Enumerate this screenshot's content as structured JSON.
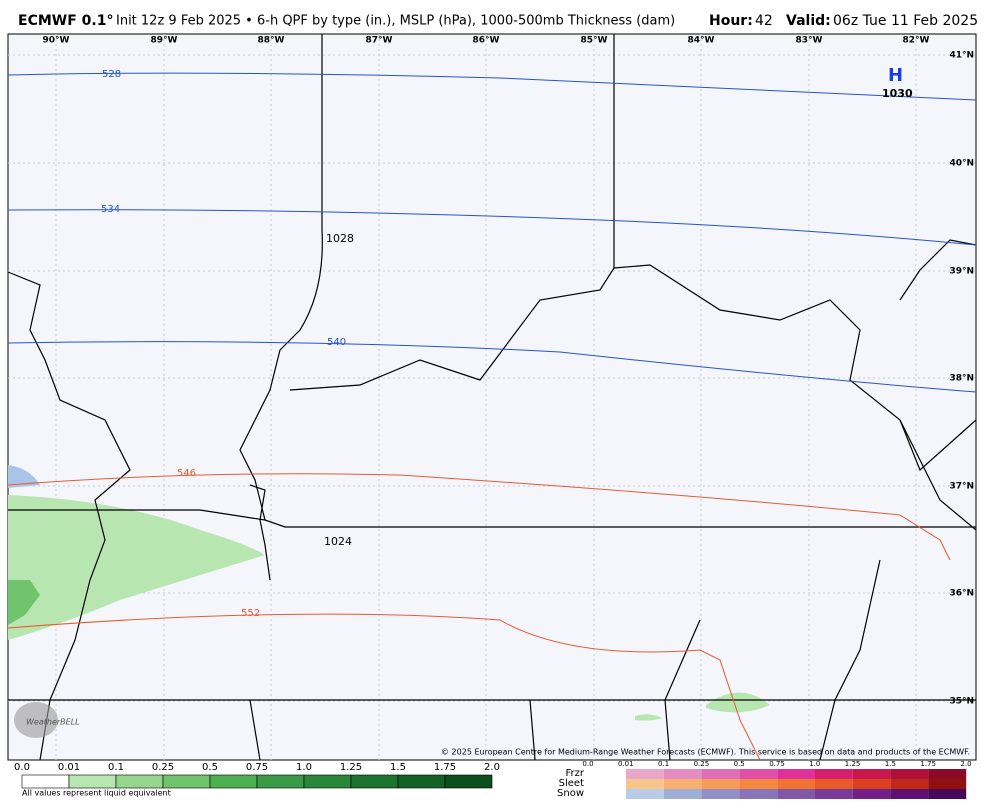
{
  "header": {
    "model": "ECMWF 0.1°",
    "subtitle": "Init 12z 9 Feb 2025 • 6-h QPF by type (in.), MSLP (hPa), 1000-500mb Thickness (dam)",
    "hour_label": "Hour:",
    "hour": "42",
    "valid_label": "Valid:",
    "valid": "06z Tue 11 Feb 2025"
  },
  "map": {
    "longitudes": [
      "90°W",
      "89°W",
      "88°W",
      "87°W",
      "86°W",
      "85°W",
      "84°W",
      "83°W",
      "82°W"
    ],
    "latitudes": [
      "41°N",
      "40°N",
      "39°N",
      "38°N",
      "37°N",
      "36°N",
      "35°N"
    ],
    "thickness_labels": [
      "528",
      "534",
      "540",
      "546",
      "552"
    ],
    "pressure_labels": [
      "1028",
      "1024",
      "1030"
    ],
    "high_marker": "H",
    "copyright": "© 2025 European Centre for Medium-Range Weather Forecasts (ECMWF). This service is based on data and products of the ECMWF.",
    "logo": "WeatherBELL"
  },
  "legend": {
    "rain_ticks": [
      "0.0",
      "0.01",
      "0.1",
      "0.25",
      "0.5",
      "0.75",
      "1.0",
      "1.25",
      "1.5",
      "1.75",
      "2.0"
    ],
    "note": "All values represent liquid equivalent",
    "types": [
      "Frzr",
      "Sleet",
      "Snow"
    ],
    "mixed_ticks": [
      "0.0",
      "0.01",
      "0.1",
      "0.25",
      "0.5",
      "0.75",
      "1.0",
      "1.25",
      "1.5",
      "1.75",
      "2.0"
    ]
  }
}
